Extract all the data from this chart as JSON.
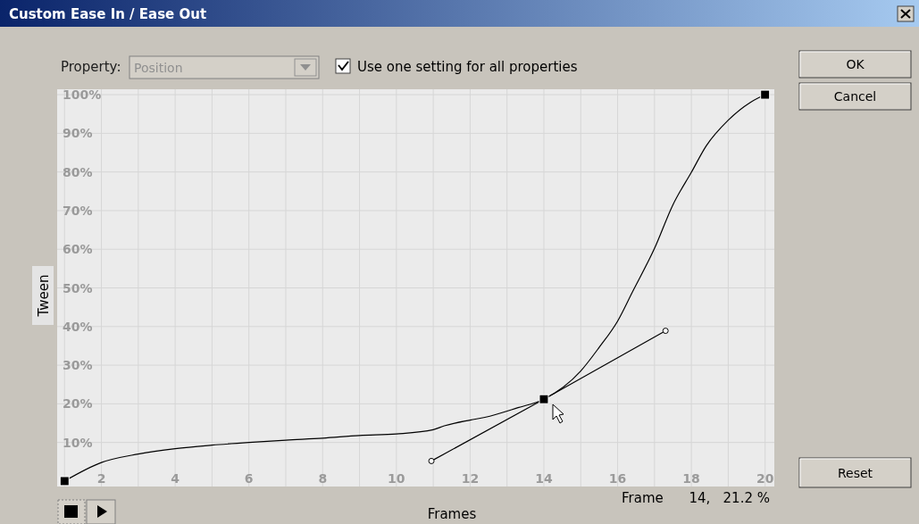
{
  "chart_data": {
    "type": "line",
    "title": "Custom Ease In / Ease Out",
    "xlabel": "Frames",
    "ylabel": "Tween",
    "xlim": [
      0.8,
      20.25
    ],
    "ylim": [
      -1.4,
      101.4
    ],
    "xticks": [
      {
        "value": 1,
        "label": null
      },
      2,
      {
        "value": 3,
        "label": null
      },
      4,
      {
        "value": 5,
        "label": null
      },
      6,
      {
        "value": 7,
        "label": null
      },
      8,
      {
        "value": 9,
        "label": null
      },
      10,
      {
        "value": 11,
        "label": null
      },
      12,
      {
        "value": 13,
        "label": null
      },
      14,
      {
        "value": 15,
        "label": null
      },
      16,
      {
        "value": 17,
        "label": null
      },
      18,
      {
        "value": 19,
        "label": null
      },
      20
    ],
    "yticks": [
      {
        "value": 10,
        "label": "10%"
      },
      {
        "value": 20,
        "label": "20%"
      },
      {
        "value": 30,
        "label": "30%"
      },
      {
        "value": 40,
        "label": "40%"
      },
      {
        "value": 50,
        "label": "50%"
      },
      {
        "value": 60,
        "label": "60%"
      },
      {
        "value": 70,
        "label": "70%"
      },
      {
        "value": 80,
        "label": "80%"
      },
      {
        "value": 90,
        "label": "90%"
      },
      {
        "value": 100,
        "label": "100%"
      }
    ],
    "grid": true,
    "series": [
      {
        "color": "#000000",
        "marker": "none",
        "x": [
          1,
          2,
          3,
          4,
          5,
          6,
          7,
          8,
          9,
          10,
          11,
          11.3,
          12,
          12.4,
          13.3,
          14,
          15,
          15.5,
          16,
          16.4,
          17,
          17.5,
          18,
          18.4,
          19,
          19.6,
          20
        ],
        "values": [
          0,
          4.8,
          7,
          8.4,
          9.3,
          10,
          10.6,
          11.1,
          11.8,
          12.2,
          13.3,
          14.3,
          15.8,
          16.5,
          19,
          21.2,
          28.5,
          34.6,
          41.4,
          48.9,
          60.2,
          71.5,
          79.9,
          86.7,
          93.4,
          98,
          100
        ]
      },
      {
        "type": "line",
        "color": "#000000",
        "marker": "circle",
        "x": [
          10.95,
          14,
          17.3
        ],
        "values": [
          5.2,
          21.2,
          38.9
        ]
      },
      {
        "type": "scatter",
        "color": "#000000",
        "marker": "square",
        "x": [
          1,
          14,
          20
        ],
        "values": [
          0,
          21.2,
          100
        ]
      }
    ],
    "annotations": [
      "Property:",
      "Position",
      "Use one setting for all properties",
      "OK",
      "Cancel",
      "Reset",
      "Frame      14,   21.2 %"
    ]
  }
}
